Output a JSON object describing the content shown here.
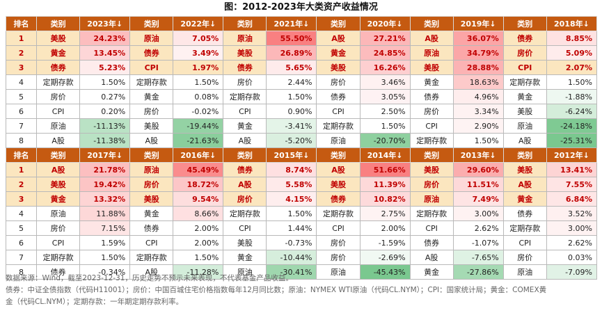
{
  "title": "图：2012-2023年大类资产收益情况",
  "chart_data": {
    "type": "table",
    "header_rank": "排名",
    "header_category": "类别",
    "colors": {
      "header_bg": "#c55a11",
      "top3_bg": "#fbe6bf",
      "top3_text": "#c00000",
      "positive_max": "#f8696b",
      "negative_max": "#63be7b",
      "neutral": "#ffffff"
    },
    "blocks": [
      {
        "years": [
          "2023年↓",
          "2022年↓",
          "2021年↓",
          "2020年↓",
          "2019年↓",
          "2018年↓"
        ],
        "rows": [
          {
            "rank": "1",
            "cells": [
              [
                "美股",
                24.23,
                "24.23%"
              ],
              [
                "原油",
                7.05,
                "7.05%"
              ],
              [
                "原油",
                55.5,
                "55.50%"
              ],
              [
                "A股",
                27.21,
                "27.21%"
              ],
              [
                "A股",
                36.07,
                "36.07%"
              ],
              [
                "债券",
                8.85,
                "8.85%"
              ]
            ]
          },
          {
            "rank": "2",
            "cells": [
              [
                "黄金",
                13.45,
                "13.45%"
              ],
              [
                "债券",
                3.49,
                "3.49%"
              ],
              [
                "美股",
                26.89,
                "26.89%"
              ],
              [
                "黄金",
                24.85,
                "24.85%"
              ],
              [
                "原油",
                34.79,
                "34.79%"
              ],
              [
                "房价",
                5.09,
                "5.09%"
              ]
            ]
          },
          {
            "rank": "3",
            "cells": [
              [
                "债券",
                5.23,
                "5.23%"
              ],
              [
                "CPI",
                1.97,
                "1.97%"
              ],
              [
                "债券",
                5.65,
                "5.65%"
              ],
              [
                "美股",
                16.26,
                "16.26%"
              ],
              [
                "美股",
                28.88,
                "28.88%"
              ],
              [
                "CPI",
                2.07,
                "2.07%"
              ]
            ]
          },
          {
            "rank": "4",
            "cells": [
              [
                "定期存款",
                1.5,
                "1.50%"
              ],
              [
                "定期存款",
                1.5,
                "1.50%"
              ],
              [
                "房价",
                2.44,
                "2.44%"
              ],
              [
                "房价",
                3.46,
                "3.46%"
              ],
              [
                "黄金",
                18.63,
                "18.63%"
              ],
              [
                "定期存款",
                1.5,
                "1.50%"
              ]
            ]
          },
          {
            "rank": "5",
            "cells": [
              [
                "房价",
                0.27,
                "0.27%"
              ],
              [
                "黄金",
                0.08,
                "0.08%"
              ],
              [
                "定期存款",
                1.5,
                "1.50%"
              ],
              [
                "债券",
                3.05,
                "3.05%"
              ],
              [
                "债券",
                4.96,
                "4.96%"
              ],
              [
                "黄金",
                -1.88,
                "-1.88%"
              ]
            ]
          },
          {
            "rank": "6",
            "cells": [
              [
                "CPI",
                0.2,
                "0.20%"
              ],
              [
                "房价",
                -0.02,
                "-0.02%"
              ],
              [
                "CPI",
                0.9,
                "0.90%"
              ],
              [
                "CPI",
                2.5,
                "2.50%"
              ],
              [
                "房价",
                3.34,
                "3.34%"
              ],
              [
                "美股",
                -6.24,
                "-6.24%"
              ]
            ]
          },
          {
            "rank": "7",
            "cells": [
              [
                "原油",
                -11.13,
                "-11.13%"
              ],
              [
                "美股",
                -19.44,
                "-19.44%"
              ],
              [
                "黄金",
                -3.41,
                "-3.41%"
              ],
              [
                "定期存款",
                1.5,
                "1.50%"
              ],
              [
                "CPI",
                2.9,
                "2.90%"
              ],
              [
                "原油",
                -24.18,
                "-24.18%"
              ]
            ]
          },
          {
            "rank": "8",
            "cells": [
              [
                "A股",
                -11.38,
                "-11.38%"
              ],
              [
                "A股",
                -21.63,
                "-21.63%"
              ],
              [
                "A股",
                -5.2,
                "-5.20%"
              ],
              [
                "原油",
                -20.7,
                "-20.70%"
              ],
              [
                "定期存款",
                1.5,
                "1.50%"
              ],
              [
                "A股",
                -25.31,
                "-25.31%"
              ]
            ]
          }
        ]
      },
      {
        "years": [
          "2017年↓",
          "2016年↓",
          "2015年↓",
          "2014年↓",
          "2013年↓",
          "2012年↓"
        ],
        "rows": [
          {
            "rank": "1",
            "cells": [
              [
                "A股",
                21.78,
                "21.78%"
              ],
              [
                "原油",
                45.49,
                "45.49%"
              ],
              [
                "债券",
                8.74,
                "8.74%"
              ],
              [
                "A股",
                51.66,
                "51.66%"
              ],
              [
                "美股",
                29.6,
                "29.60%"
              ],
              [
                "美股",
                13.41,
                "13.41%"
              ]
            ]
          },
          {
            "rank": "2",
            "cells": [
              [
                "美股",
                19.42,
                "19.42%"
              ],
              [
                "房价",
                18.72,
                "18.72%"
              ],
              [
                "A股",
                5.58,
                "5.58%"
              ],
              [
                "美股",
                11.39,
                "11.39%"
              ],
              [
                "房价",
                11.51,
                "11.51%"
              ],
              [
                "A股",
                7.55,
                "7.55%"
              ]
            ]
          },
          {
            "rank": "3",
            "cells": [
              [
                "黄金",
                13.32,
                "13.32%"
              ],
              [
                "美股",
                9.54,
                "9.54%"
              ],
              [
                "房价",
                4.15,
                "4.15%"
              ],
              [
                "债券",
                10.82,
                "10.82%"
              ],
              [
                "原油",
                7.49,
                "7.49%"
              ],
              [
                "黄金",
                6.84,
                "6.84%"
              ]
            ]
          },
          {
            "rank": "4",
            "cells": [
              [
                "原油",
                11.88,
                "11.88%"
              ],
              [
                "黄金",
                8.66,
                "8.66%"
              ],
              [
                "定期存款",
                1.5,
                "1.50%"
              ],
              [
                "定期存款",
                2.75,
                "2.75%"
              ],
              [
                "定期存款",
                3.0,
                "3.00%"
              ],
              [
                "债券",
                3.52,
                "3.52%"
              ]
            ]
          },
          {
            "rank": "5",
            "cells": [
              [
                "房价",
                7.15,
                "7.15%"
              ],
              [
                "债券",
                2.0,
                "2.00%"
              ],
              [
                "CPI",
                1.44,
                "1.44%"
              ],
              [
                "CPI",
                2.0,
                "2.00%"
              ],
              [
                "CPI",
                2.62,
                "2.62%"
              ],
              [
                "定期存款",
                3.0,
                "3.00%"
              ]
            ]
          },
          {
            "rank": "6",
            "cells": [
              [
                "CPI",
                1.59,
                "1.59%"
              ],
              [
                "CPI",
                2.0,
                "2.00%"
              ],
              [
                "美股",
                -0.73,
                "-0.73%"
              ],
              [
                "房价",
                -1.59,
                "-1.59%"
              ],
              [
                "债券",
                -1.07,
                "-1.07%"
              ],
              [
                "CPI",
                2.62,
                "2.62%"
              ]
            ]
          },
          {
            "rank": "7",
            "cells": [
              [
                "定期存款",
                1.5,
                "1.50%"
              ],
              [
                "定期存款",
                1.5,
                "1.50%"
              ],
              [
                "黄金",
                -10.44,
                "-10.44%"
              ],
              [
                "房价",
                -2.69,
                "-2.69%"
              ],
              [
                "A股",
                -7.65,
                "-7.65%"
              ],
              [
                "房价",
                0.03,
                "0.03%"
              ]
            ]
          },
          {
            "rank": "8",
            "cells": [
              [
                "债券",
                -0.34,
                "-0.34%"
              ],
              [
                "A股",
                -11.28,
                "-11.28%"
              ],
              [
                "原油",
                -30.41,
                "-30.41%"
              ],
              [
                "原油",
                -45.43,
                "-45.43%"
              ],
              [
                "黄金",
                -27.86,
                "-27.86%"
              ],
              [
                "原油",
                -7.09,
                "-7.09%"
              ]
            ]
          }
        ]
      }
    ]
  },
  "notes": [
    "数据来源：Wind，截至2023-12-31，历史走势不预示未来表现，不代表基金产品收益。",
    "债券：中证全债指数（代码H11001）；房价：中国百城住宅价格指数每年12月同比数；原油：NYMEX WTI原油（代码CL.NYM）；CPI：国家统计局；黄金：COMEX黄",
    "金（代码CL.NYM）；定期存款：一年期定期存款利率。"
  ]
}
